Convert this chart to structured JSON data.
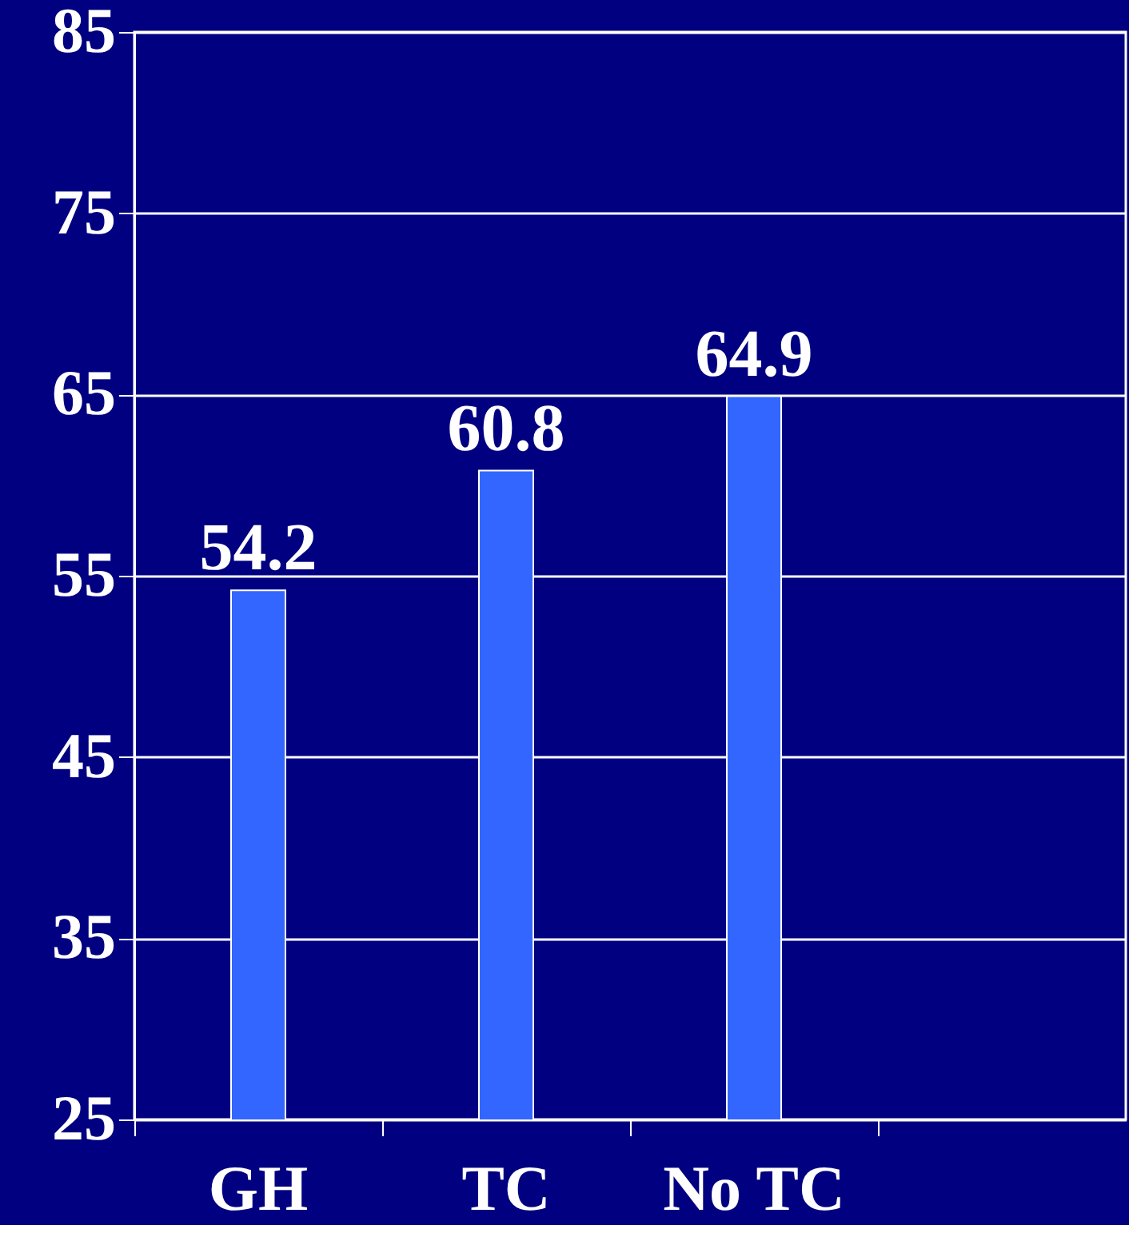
{
  "chart_data": {
    "type": "bar",
    "categories": [
      "GH",
      "TC",
      "No TC",
      null
    ],
    "values": [
      54.2,
      60.8,
      64.9,
      null
    ],
    "color": "#3366ff",
    "ylim": [
      25,
      85
    ],
    "yticks": [
      25,
      35,
      45,
      55,
      65,
      75,
      85
    ],
    "grid": "y",
    "data_labels": true
  }
}
